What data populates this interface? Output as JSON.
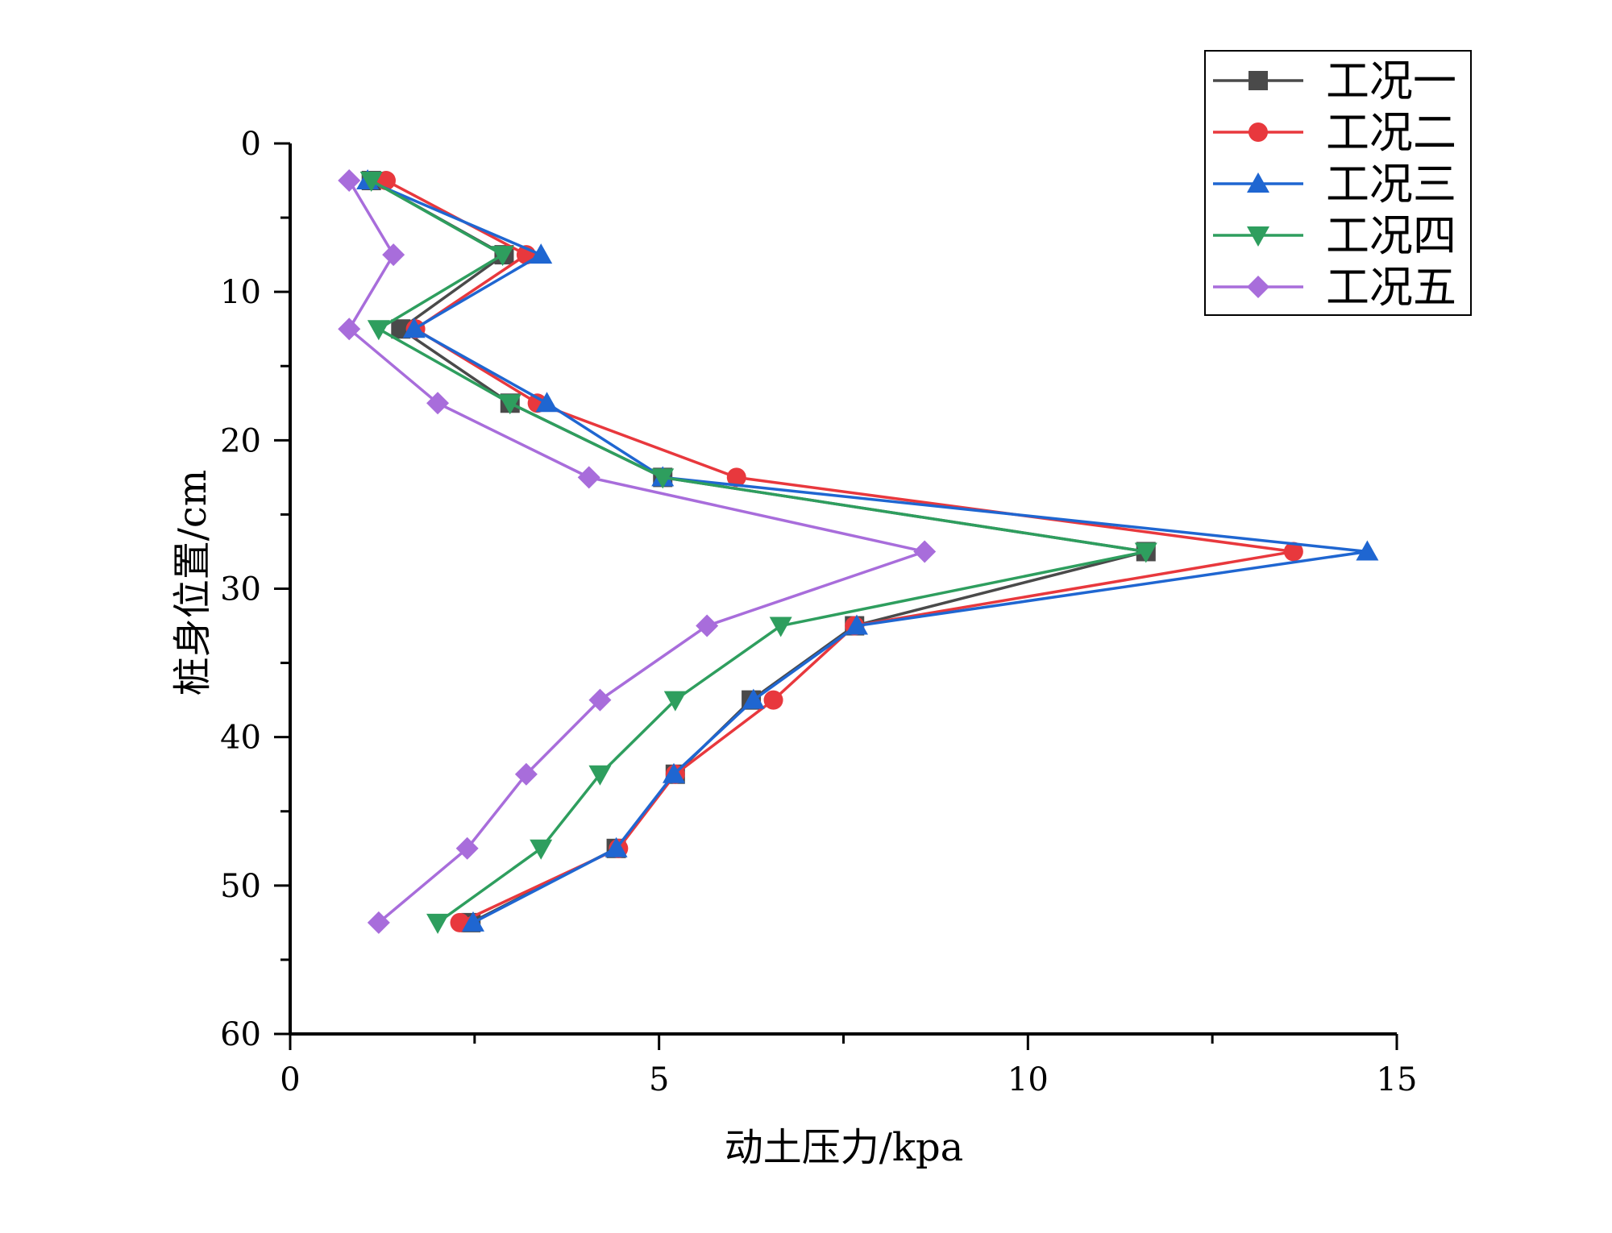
{
  "chart_data": {
    "type": "line",
    "title": "",
    "xlabel": "动土压力/kpa",
    "ylabel": "桩身位置/cm",
    "xlim": [
      0,
      15
    ],
    "ylim": [
      0,
      60
    ],
    "y_inverted": true,
    "x_ticks": [
      0,
      5,
      10,
      15
    ],
    "y_ticks": [
      0,
      10,
      20,
      30,
      40,
      50,
      60
    ],
    "grid": false,
    "legend_position": "top-right",
    "y": [
      2.5,
      7.5,
      12.5,
      17.5,
      22.5,
      27.5,
      32.5,
      37.5,
      42.5,
      47.5,
      52.5
    ],
    "series": [
      {
        "name": "工况一",
        "color": "#4a4a4a",
        "marker": "square",
        "values": [
          1.1,
          2.9,
          1.5,
          2.98,
          5.05,
          11.6,
          7.65,
          6.25,
          5.22,
          4.42,
          2.45
        ]
      },
      {
        "name": "工况二",
        "color": "#e8383d",
        "marker": "circle",
        "values": [
          1.3,
          3.2,
          1.7,
          3.35,
          6.05,
          13.6,
          7.65,
          6.55,
          5.22,
          4.45,
          2.3
        ]
      },
      {
        "name": "工况三",
        "color": "#1f66d1",
        "marker": "triangle-up",
        "values": [
          1.05,
          3.4,
          1.68,
          3.48,
          5.05,
          14.6,
          7.68,
          6.28,
          5.2,
          4.42,
          2.48
        ]
      },
      {
        "name": "工况四",
        "color": "#2e9e5e",
        "marker": "triangle-down",
        "values": [
          1.1,
          2.88,
          1.2,
          2.98,
          5.05,
          11.6,
          6.65,
          5.22,
          4.2,
          3.4,
          2.0
        ]
      },
      {
        "name": "工况五",
        "color": "#a86ddb",
        "marker": "diamond",
        "values": [
          0.8,
          1.4,
          0.8,
          2.0,
          4.05,
          8.6,
          5.65,
          4.2,
          3.2,
          2.4,
          1.2
        ]
      }
    ]
  }
}
